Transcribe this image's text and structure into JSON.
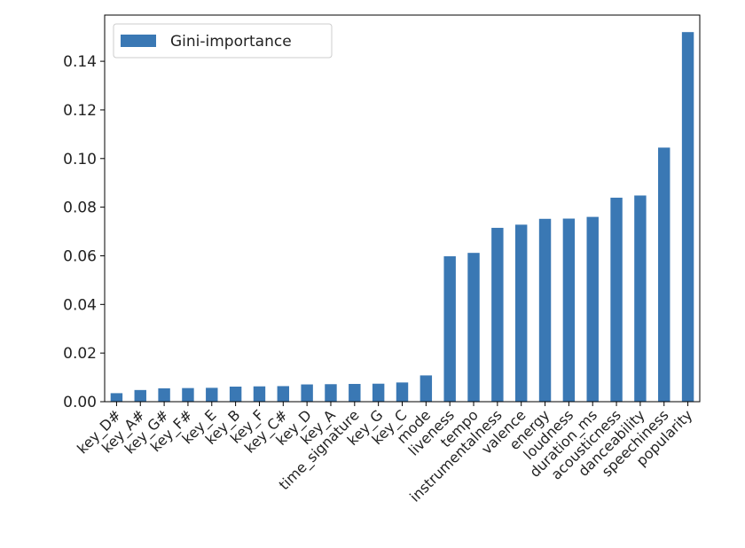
{
  "chart_data": {
    "type": "bar",
    "title": "",
    "xlabel": "",
    "ylabel": "",
    "ylim": [
      0,
      0.159
    ],
    "yticks": [
      "0.00",
      "0.02",
      "0.04",
      "0.06",
      "0.08",
      "0.10",
      "0.12",
      "0.14"
    ],
    "legend": {
      "label": "Gini-importance",
      "placement": "top-left"
    },
    "color": "#3a78b4",
    "categories": [
      "key_D#",
      "key_A#",
      "key_G#",
      "key_F#",
      "key_E",
      "key_B",
      "key_F",
      "key_C#",
      "key_D",
      "key_A",
      "time_signature",
      "key_G",
      "key_C",
      "mode",
      "liveness",
      "tempo",
      "instrumentalness",
      "valence",
      "energy",
      "loudness",
      "duration_ms",
      "acousticness",
      "danceability",
      "speechiness",
      "popularity"
    ],
    "values": [
      0.0035,
      0.0048,
      0.0055,
      0.0056,
      0.0057,
      0.0062,
      0.0063,
      0.0064,
      0.0071,
      0.0072,
      0.0073,
      0.0074,
      0.0079,
      0.0108,
      0.0598,
      0.0612,
      0.0715,
      0.0728,
      0.0752,
      0.0753,
      0.076,
      0.0839,
      0.0848,
      0.1045,
      0.152
    ]
  }
}
